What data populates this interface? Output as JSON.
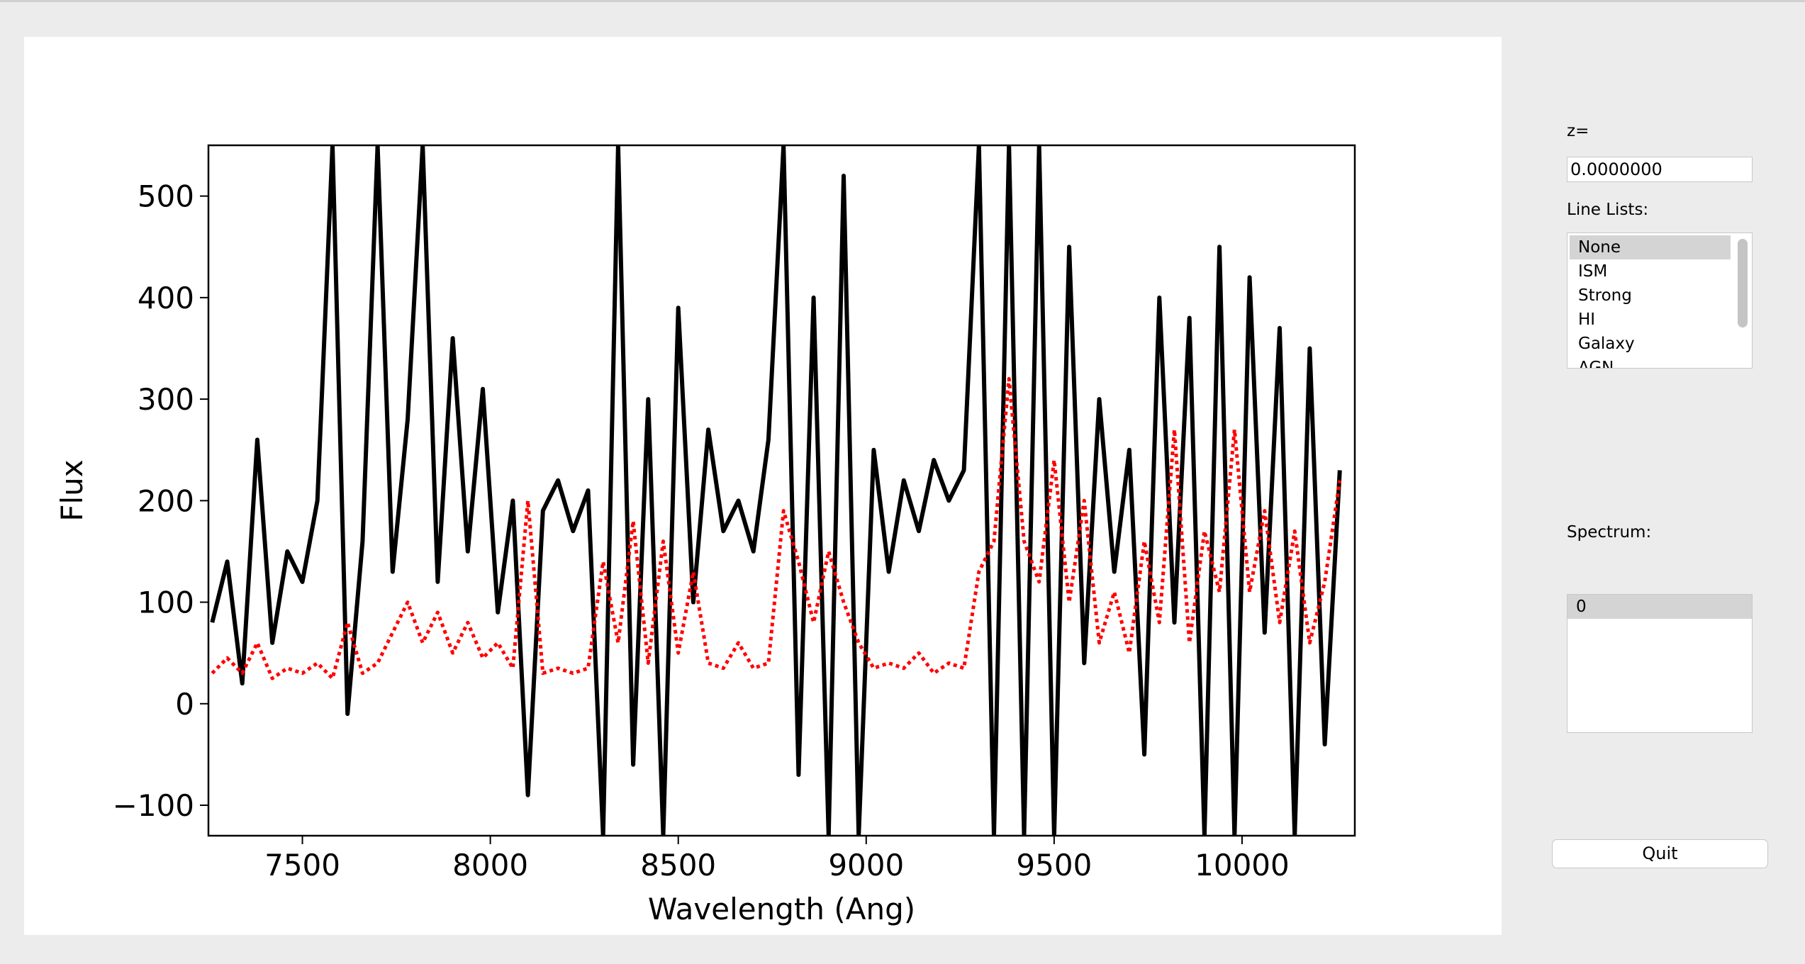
{
  "chart_data": {
    "type": "line",
    "xlabel": "Wavelength (Ang)",
    "ylabel": "Flux",
    "x": [
      7260,
      7300,
      7340,
      7380,
      7420,
      7460,
      7500,
      7540,
      7580,
      7620,
      7660,
      7700,
      7740,
      7780,
      7820,
      7860,
      7900,
      7940,
      7980,
      8020,
      8060,
      8100,
      8140,
      8180,
      8220,
      8260,
      8300,
      8340,
      8380,
      8420,
      8460,
      8500,
      8540,
      8580,
      8620,
      8660,
      8700,
      8740,
      8780,
      8820,
      8860,
      8900,
      8940,
      8980,
      9020,
      9060,
      9100,
      9140,
      9180,
      9220,
      9260,
      9300,
      9340,
      9380,
      9420,
      9460,
      9500,
      9540,
      9580,
      9620,
      9660,
      9700,
      9740,
      9780,
      9820,
      9860,
      9900,
      9940,
      9980,
      10020,
      10060,
      10100,
      10140,
      10180,
      10220,
      10260
    ],
    "series": [
      {
        "color": "#000000",
        "style": "solid",
        "values": [
          80,
          140,
          20,
          260,
          60,
          150,
          120,
          200,
          550,
          -10,
          160,
          550,
          130,
          280,
          550,
          120,
          360,
          150,
          310,
          90,
          200,
          -90,
          190,
          220,
          170,
          210,
          -130,
          550,
          -60,
          300,
          -130,
          390,
          100,
          270,
          170,
          200,
          150,
          260,
          550,
          -70,
          400,
          -130,
          520,
          -130,
          250,
          130,
          220,
          170,
          240,
          200,
          230,
          550,
          -130,
          550,
          -130,
          550,
          -130,
          450,
          40,
          300,
          130,
          250,
          -50,
          400,
          80,
          380,
          -130,
          450,
          -130,
          420,
          70,
          370,
          -130,
          350,
          -40,
          230
        ]
      },
      {
        "color": "#ff0000",
        "style": "dotted",
        "values": [
          30,
          45,
          30,
          60,
          25,
          35,
          30,
          40,
          25,
          80,
          30,
          40,
          70,
          100,
          60,
          90,
          50,
          80,
          45,
          60,
          35,
          200,
          30,
          35,
          30,
          35,
          140,
          60,
          180,
          40,
          160,
          50,
          130,
          40,
          35,
          60,
          35,
          40,
          190,
          140,
          80,
          150,
          100,
          60,
          35,
          40,
          35,
          50,
          30,
          40,
          35,
          130,
          160,
          320,
          160,
          120,
          240,
          100,
          200,
          60,
          110,
          50,
          160,
          80,
          270,
          60,
          170,
          110,
          270,
          110,
          190,
          80,
          170,
          60,
          120,
          220
        ]
      }
    ],
    "xlim": [
      7250,
      10300
    ],
    "xticks": [
      7500,
      8000,
      8500,
      9000,
      9500,
      10000
    ],
    "ylim": [
      -130,
      550
    ],
    "yticks": [
      {
        "value": -100,
        "label": "−100"
      },
      0,
      100,
      200,
      300,
      400,
      500
    ],
    "grid": false
  },
  "ui": {
    "z_label": "z=",
    "z_value": "0.0000000",
    "line_lists_label": "Line Lists:",
    "line_lists": [
      "None",
      "ISM",
      "Strong",
      "HI",
      "Galaxy",
      "AGN"
    ],
    "spectrum_label": "Spectrum:",
    "spectra": [
      "0"
    ],
    "quit": "Quit"
  }
}
